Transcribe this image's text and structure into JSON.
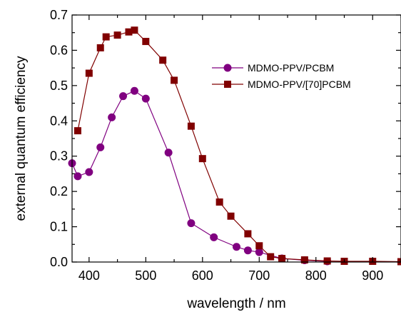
{
  "chart_data": {
    "type": "line",
    "xlabel": "wavelength / nm",
    "ylabel": "external quantum efficiency",
    "xlim": [
      370,
      950
    ],
    "ylim": [
      0.0,
      0.7
    ],
    "x_ticks": [
      400,
      500,
      600,
      700,
      800,
      900
    ],
    "y_ticks": [
      0.0,
      0.1,
      0.2,
      0.3,
      0.4,
      0.5,
      0.6,
      0.7
    ],
    "x_tick_labels": [
      "400",
      "500",
      "600",
      "700",
      "800",
      "900"
    ],
    "y_tick_labels": [
      "0.0",
      "0.1",
      "0.2",
      "0.3",
      "0.4",
      "0.5",
      "0.6",
      "0.7"
    ],
    "grid": false,
    "legend_position": "top-right",
    "series": [
      {
        "name": "MDMO-PPV/PCBM",
        "marker": "circle",
        "color": "#800080",
        "x": [
          370,
          380,
          400,
          420,
          440,
          460,
          480,
          500,
          540,
          580,
          620,
          660,
          680,
          700,
          740,
          780,
          820
        ],
        "y": [
          0.28,
          0.243,
          0.255,
          0.325,
          0.41,
          0.47,
          0.485,
          0.463,
          0.31,
          0.11,
          0.07,
          0.043,
          0.033,
          0.028,
          0.01,
          0.005,
          0.002
        ]
      },
      {
        "name": "MDMO-PPV/[70]PCBM",
        "marker": "square",
        "color": "#800000",
        "x": [
          380,
          400,
          420,
          430,
          450,
          470,
          480,
          500,
          530,
          550,
          580,
          600,
          630,
          650,
          680,
          700,
          720,
          740,
          780,
          820,
          850,
          900,
          950
        ],
        "y": [
          0.372,
          0.535,
          0.607,
          0.638,
          0.643,
          0.652,
          0.657,
          0.625,
          0.572,
          0.515,
          0.385,
          0.293,
          0.17,
          0.13,
          0.08,
          0.046,
          0.015,
          0.01,
          0.006,
          0.003,
          0.002,
          0.002,
          0.001
        ]
      }
    ]
  }
}
